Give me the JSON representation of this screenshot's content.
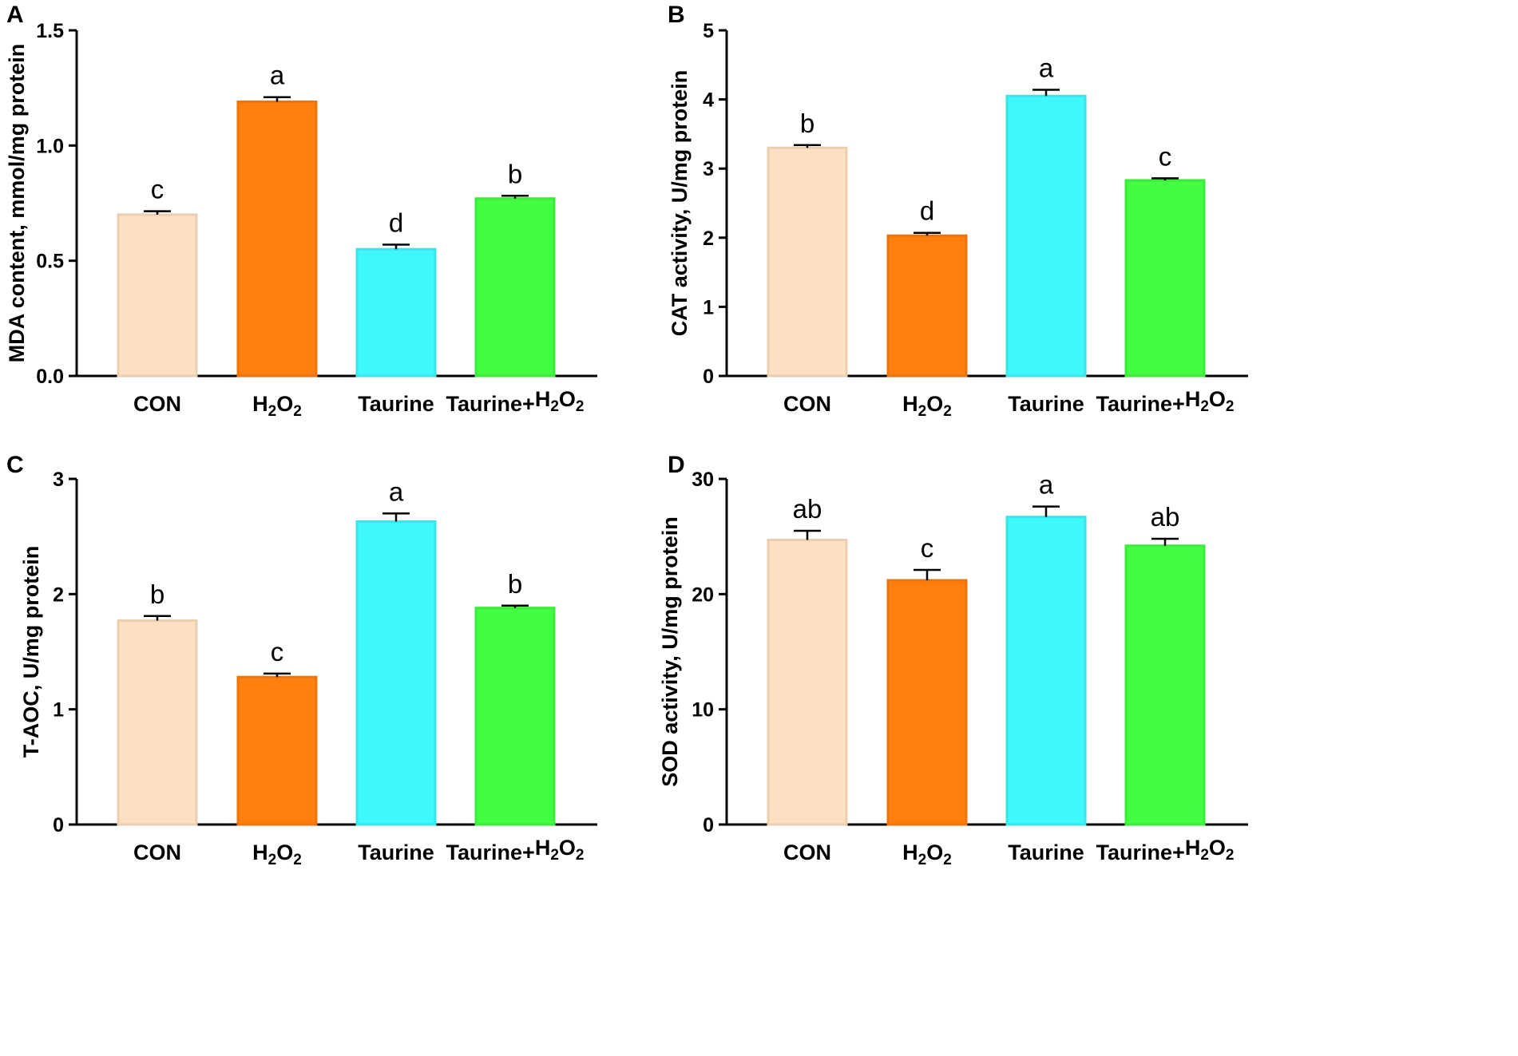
{
  "figure": {
    "panels": [
      {
        "letter": "A"
      },
      {
        "letter": "B"
      },
      {
        "letter": "C"
      },
      {
        "letter": "D"
      }
    ]
  },
  "chart_data": [
    {
      "type": "bar",
      "panel": "A",
      "categories": [
        "CON",
        "H2O2",
        "Taurine",
        "Taurine+H2O2"
      ],
      "ylabel": "MDA content, mmol/mg protein",
      "ylim": [
        0,
        1.5
      ],
      "yticks": [
        0.0,
        0.5,
        1.0,
        1.5
      ],
      "ytick_labels": [
        "0.0",
        "0.5",
        "1.0",
        "1.5"
      ],
      "values": [
        0.7,
        1.19,
        0.55,
        0.77
      ],
      "errors": [
        0.015,
        0.02,
        0.02,
        0.012
      ],
      "sig_labels": [
        "c",
        "a",
        "d",
        "b"
      ],
      "colors": [
        "#fde0c2",
        "#ff7f0e",
        "#3ff8fb",
        "#42fd41"
      ]
    },
    {
      "type": "bar",
      "panel": "B",
      "categories": [
        "CON",
        "H2O2",
        "Taurine",
        "Taurine+H2O2"
      ],
      "ylabel": "CAT activity, U/mg protein",
      "ylim": [
        0,
        5
      ],
      "yticks": [
        0,
        1,
        2,
        3,
        4,
        5
      ],
      "ytick_labels": [
        "0",
        "1",
        "2",
        "3",
        "4",
        "5"
      ],
      "values": [
        3.3,
        2.03,
        4.05,
        2.83
      ],
      "errors": [
        0.04,
        0.04,
        0.09,
        0.03
      ],
      "sig_labels": [
        "b",
        "d",
        "a",
        "c"
      ],
      "colors": [
        "#fde0c2",
        "#ff7f0e",
        "#3ff8fb",
        "#42fd41"
      ]
    },
    {
      "type": "bar",
      "panel": "C",
      "categories": [
        "CON",
        "H2O2",
        "Taurine",
        "Taurine+H2O2"
      ],
      "ylabel": "T-AOC, U/mg protein",
      "ylim": [
        0,
        3
      ],
      "yticks": [
        0,
        1,
        2,
        3
      ],
      "ytick_labels": [
        "0",
        "1",
        "2",
        "3"
      ],
      "values": [
        1.77,
        1.28,
        2.63,
        1.88
      ],
      "errors": [
        0.04,
        0.03,
        0.07,
        0.02
      ],
      "sig_labels": [
        "b",
        "c",
        "a",
        "b"
      ],
      "colors": [
        "#fde0c2",
        "#ff7f0e",
        "#3ff8fb",
        "#42fd41"
      ]
    },
    {
      "type": "bar",
      "panel": "D",
      "categories": [
        "CON",
        "H2O2",
        "Taurine",
        "Taurine+H2O2"
      ],
      "ylabel": "SOD activity, U/mg protein",
      "ylim": [
        0,
        30
      ],
      "yticks": [
        0,
        10,
        20,
        30
      ],
      "ytick_labels": [
        "0",
        "10",
        "20",
        "30"
      ],
      "values": [
        24.7,
        21.2,
        26.7,
        24.2
      ],
      "errors": [
        0.8,
        0.9,
        0.9,
        0.6
      ],
      "sig_labels": [
        "ab",
        "c",
        "a",
        "ab"
      ],
      "colors": [
        "#fde0c2",
        "#ff7f0e",
        "#3ff8fb",
        "#42fd41"
      ]
    }
  ]
}
